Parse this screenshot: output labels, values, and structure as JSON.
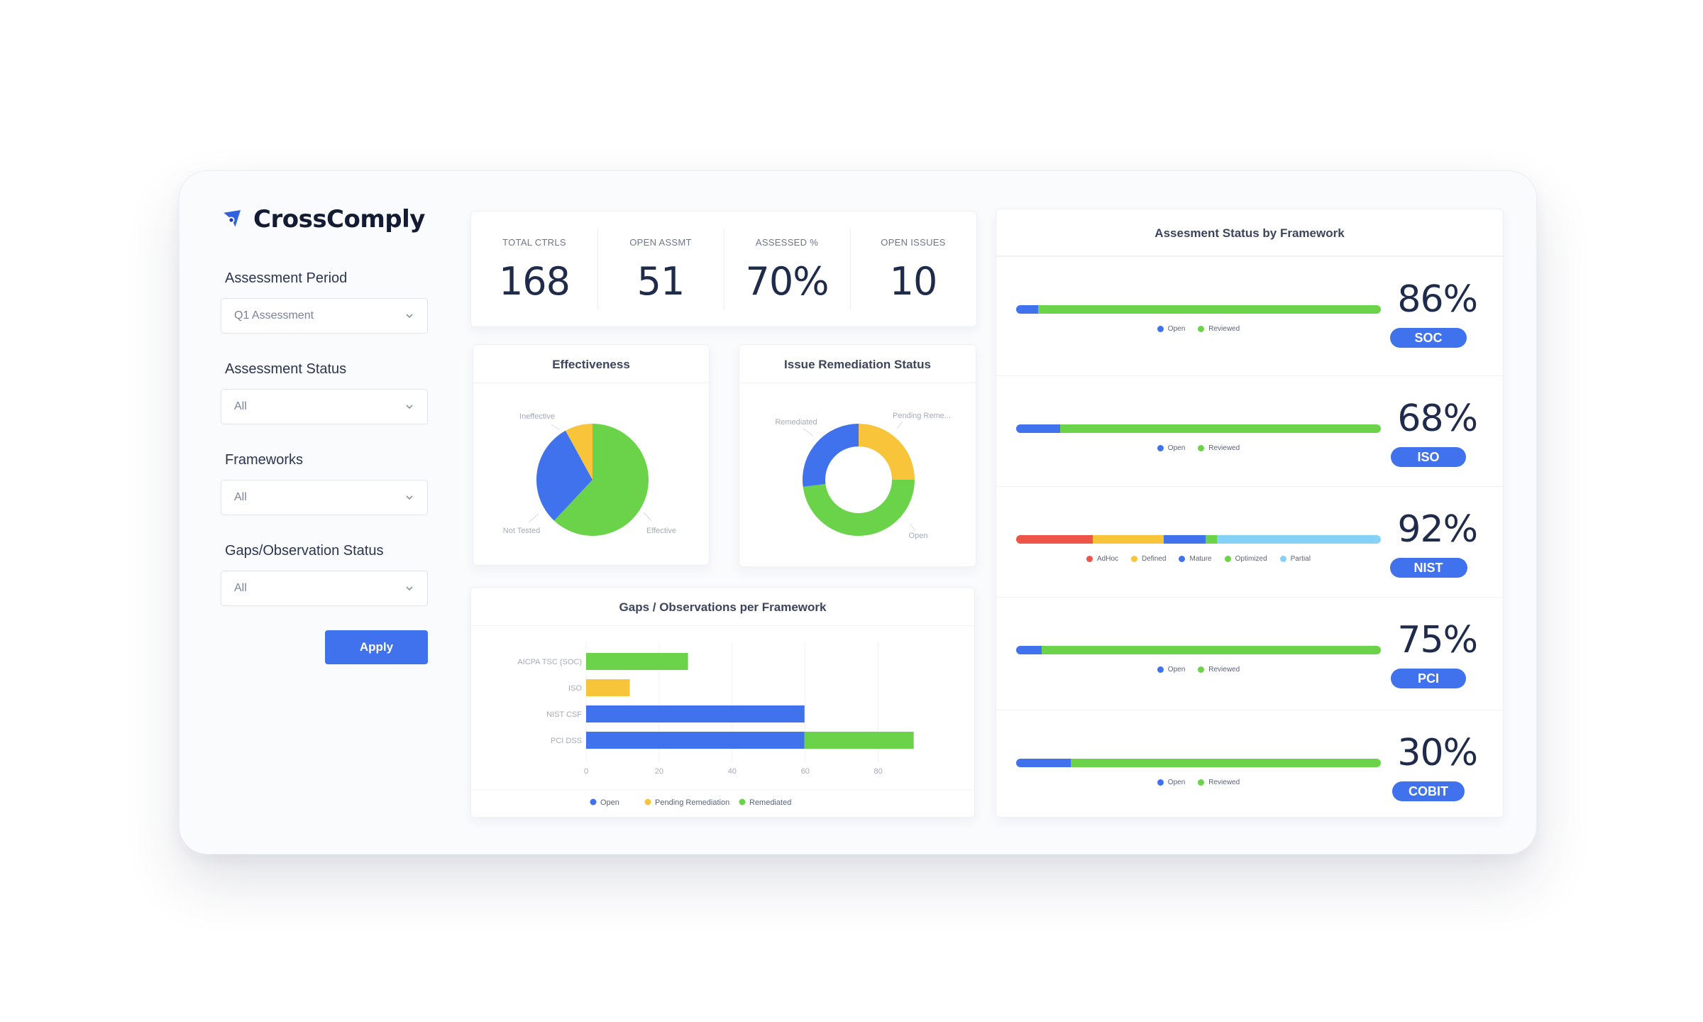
{
  "brand": {
    "name": "CrossComply"
  },
  "filters": [
    {
      "label": "Assessment Period",
      "value": "Q1 Assessment"
    },
    {
      "label": "Assessment Status",
      "value": "All"
    },
    {
      "label": "Frameworks",
      "value": "All"
    },
    {
      "label": "Gaps/Observation Status",
      "value": "All"
    }
  ],
  "apply_label": "Apply",
  "kpis": [
    {
      "label": "TOTAL CTRLS",
      "value": "168"
    },
    {
      "label": "OPEN ASSMT",
      "value": "51"
    },
    {
      "label": "ASSESSED %",
      "value": "70%"
    },
    {
      "label": "OPEN ISSUES",
      "value": "10"
    }
  ],
  "colors": {
    "blue": "#3f72ec",
    "green": "#6bd34a",
    "yellow": "#f8c53a",
    "red": "#ec5547",
    "lightblue": "#86d1f7",
    "text": "#1f2b4a"
  },
  "chart_data": [
    {
      "type": "pie",
      "title": "Effectiveness",
      "slices": [
        {
          "label": "Effective",
          "value": 62,
          "color": "#6bd34a"
        },
        {
          "label": "Not Tested",
          "value": 30,
          "color": "#3f72ec"
        },
        {
          "label": "Ineffective",
          "value": 8,
          "color": "#f8c53a"
        }
      ]
    },
    {
      "type": "pie",
      "title": "Issue Remediation Status",
      "donut": true,
      "slices": [
        {
          "label": "Pending Reme...",
          "value": 25,
          "color": "#f8c53a"
        },
        {
          "label": "Open",
          "value": 48,
          "color": "#6bd34a"
        },
        {
          "label": "Remediated",
          "value": 27,
          "color": "#3f72ec"
        }
      ]
    },
    {
      "type": "bar",
      "orientation": "horizontal",
      "stacked": true,
      "title": "Gaps / Observations per Framework",
      "categories": [
        "AICPA TSC (SOC)",
        "ISO",
        "NIST CSF",
        "PCI DSS"
      ],
      "series": [
        {
          "name": "Open",
          "values": [
            0,
            0,
            60,
            60
          ],
          "color": "#3f72ec"
        },
        {
          "name": "Pending Remediation",
          "values": [
            0,
            12,
            0,
            0
          ],
          "color": "#f8c53a"
        },
        {
          "name": "Remediated",
          "values": [
            28,
            0,
            0,
            30
          ],
          "color": "#6bd34a"
        }
      ],
      "xticks": [
        "0",
        "20",
        "40",
        "60",
        "80"
      ],
      "xlim": [
        0,
        100
      ],
      "legend": "bottom"
    },
    {
      "type": "bar",
      "orientation": "horizontal",
      "stacked": true,
      "title": "Assesment Status by Framework",
      "frameworks": [
        {
          "name": "SOC",
          "pct": "86%",
          "segments": [
            {
              "name": "Open",
              "value": 6,
              "color": "#3f72ec"
            },
            {
              "name": "Reviewed",
              "value": 94,
              "color": "#6bd34a"
            }
          ]
        },
        {
          "name": "ISO",
          "pct": "68%",
          "segments": [
            {
              "name": "Open",
              "value": 12,
              "color": "#3f72ec"
            },
            {
              "name": "Reviewed",
              "value": 88,
              "color": "#6bd34a"
            }
          ]
        },
        {
          "name": "NIST",
          "pct": "92%",
          "segments": [
            {
              "name": "AdHoc",
              "value": 21,
              "color": "#ec5547"
            },
            {
              "name": "Defined",
              "value": 19.5,
              "color": "#f8c53a"
            },
            {
              "name": "Mature",
              "value": 11.5,
              "color": "#3f72ec"
            },
            {
              "name": "Optimized",
              "value": 3,
              "color": "#6bd34a"
            },
            {
              "name": "Partial",
              "value": 45,
              "color": "#86d1f7"
            }
          ]
        },
        {
          "name": "PCI",
          "pct": "75%",
          "segments": [
            {
              "name": "Open",
              "value": 7,
              "color": "#3f72ec"
            },
            {
              "name": "Reviewed",
              "value": 93,
              "color": "#6bd34a"
            }
          ]
        },
        {
          "name": "COBIT",
          "pct": "30%",
          "segments": [
            {
              "name": "Open",
              "value": 15,
              "color": "#3f72ec"
            },
            {
              "name": "Reviewed",
              "value": 85,
              "color": "#6bd34a"
            }
          ]
        }
      ]
    }
  ]
}
